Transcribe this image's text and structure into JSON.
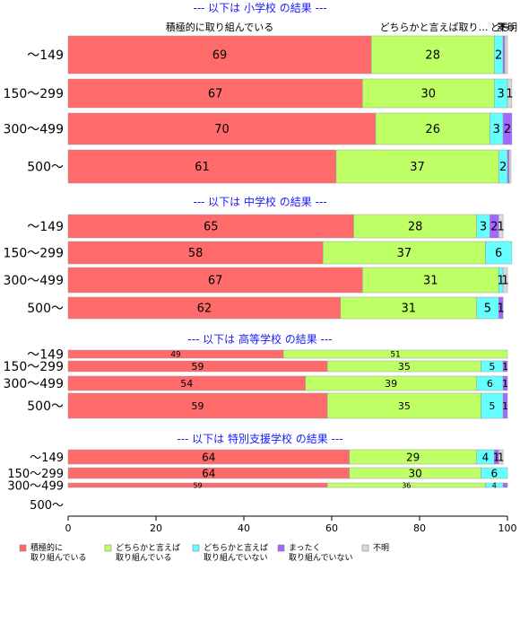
{
  "chart_data": {
    "type": "bar",
    "orientation": "horizontal",
    "stacked": true,
    "xlim": [
      0,
      100
    ],
    "x_ticks": [
      "0",
      "20",
      "40",
      "60",
      "80",
      "100"
    ],
    "series": [
      {
        "name": "積極的に\n取り組んでいる",
        "color": "#ff6b6b"
      },
      {
        "name": "どちらかと言えば\n取り組んでいる",
        "color": "#bfff66"
      },
      {
        "name": "どちらかと言えば\n取り組んでいない",
        "color": "#66ffff"
      },
      {
        "name": "まったく\n取り組んでいない",
        "color": "#a366ff"
      },
      {
        "name": "不明",
        "color": "#d9d9d9"
      }
    ],
    "top_column_labels": [
      "積極的に取り組んでいる",
      "どちらかと言えば取り…",
      "どち",
      "まっ",
      "不明"
    ],
    "groups": [
      {
        "title": "--- 以下は 小学校 の結果 ---",
        "rows": [
          {
            "category": "～149",
            "values": [
              69,
              28,
              2,
              0.4,
              0.6
            ],
            "labels": [
              "69",
              "28",
              "2",
              "",
              ""
            ]
          },
          {
            "category": "150～299",
            "values": [
              67,
              30,
              3,
              0,
              1
            ],
            "labels": [
              "67",
              "30",
              "3",
              "",
              "1"
            ]
          },
          {
            "category": "300～499",
            "values": [
              70,
              26,
              3,
              2,
              0
            ],
            "labels": [
              "70",
              "26",
              "3",
              "2",
              ""
            ]
          },
          {
            "category": "500～",
            "values": [
              61,
              37,
              2,
              0.4,
              0.4
            ],
            "labels": [
              "61",
              "37",
              "2",
              "",
              ""
            ]
          }
        ]
      },
      {
        "title": "--- 以下は 中学校 の結果 ---",
        "rows": [
          {
            "category": "～149",
            "values": [
              65,
              28,
              3,
              2,
              1
            ],
            "labels": [
              "65",
              "28",
              "3",
              "2",
              "1"
            ]
          },
          {
            "category": "150～299",
            "values": [
              58,
              37,
              6,
              0,
              0
            ],
            "labels": [
              "58",
              "37",
              "6",
              "",
              ""
            ]
          },
          {
            "category": "300～499",
            "values": [
              67,
              31,
              1,
              0,
              1
            ],
            "labels": [
              "67",
              "31",
              "1",
              "",
              "1"
            ]
          },
          {
            "category": "500～",
            "values": [
              62,
              31,
              5,
              1,
              0
            ],
            "labels": [
              "62",
              "31",
              "5",
              "1",
              ""
            ]
          }
        ]
      },
      {
        "title": "--- 以下は 高等学校 の結果 ---",
        "rows": [
          {
            "category": "～149",
            "values": [
              49,
              51,
              0,
              0,
              0
            ],
            "labels": [
              "49",
              "51",
              "",
              "",
              ""
            ]
          },
          {
            "category": "150～299",
            "values": [
              59,
              35,
              5,
              1,
              0
            ],
            "labels": [
              "59",
              "35",
              "5",
              "1",
              ""
            ]
          },
          {
            "category": "300～499",
            "values": [
              54,
              39,
              6,
              1,
              0
            ],
            "labels": [
              "54",
              "39",
              "6",
              "1",
              ""
            ]
          },
          {
            "category": "500～",
            "values": [
              59,
              35,
              5,
              1,
              0
            ],
            "labels": [
              "59",
              "35",
              "5",
              "1",
              ""
            ]
          }
        ]
      },
      {
        "title": "--- 以下は 特別支援学校 の結果 ---",
        "rows": [
          {
            "category": "～149",
            "values": [
              64,
              29,
              4,
              1,
              1
            ],
            "labels": [
              "64",
              "29",
              "4",
              "1",
              "1"
            ]
          },
          {
            "category": "150～299",
            "values": [
              64,
              30,
              6,
              0,
              0
            ],
            "labels": [
              "64",
              "30",
              "6",
              "",
              ""
            ]
          },
          {
            "category": "300～499",
            "values": [
              59,
              36,
              4,
              1,
              0
            ],
            "labels": [
              "59",
              "36",
              "4",
              "",
              ""
            ]
          },
          {
            "category": "500～",
            "values": [],
            "labels": []
          }
        ]
      }
    ]
  }
}
